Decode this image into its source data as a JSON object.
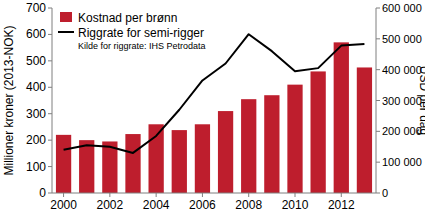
{
  "chart_data": {
    "type": "bar",
    "categories": [
      "2000",
      null,
      "2002",
      null,
      "2004",
      null,
      "2006",
      null,
      "2008",
      null,
      "2010",
      null,
      "2012",
      null
    ],
    "series": [
      {
        "name": "Kostnad per brønn",
        "type": "bar",
        "color": "#be1e2d",
        "values": [
          220,
          200,
          195,
          223,
          260,
          238,
          260,
          310,
          355,
          370,
          410,
          460,
          570,
          475
        ]
      },
      {
        "name": "Riggrate for semi-rigger",
        "type": "line",
        "axis": "y2",
        "color": "#000000",
        "values": [
          140000,
          155000,
          150000,
          130000,
          185000,
          270000,
          365000,
          420000,
          515000,
          460000,
          395000,
          405000,
          478000,
          483000
        ]
      }
    ],
    "ylabel": "Millioner kroner (2013-NOK)",
    "y2label": "USD per dag",
    "annotations": [
      "Kilde for riggrate: IHS Petrodata"
    ],
    "ylim": [
      0,
      700
    ],
    "yticks": [
      0,
      100,
      200,
      300,
      400,
      500,
      600,
      700
    ],
    "y2lim": [
      0,
      600000
    ],
    "y2ticks": [
      0,
      {
        "value": 100000,
        "label": "100 000"
      },
      {
        "value": 200000,
        "label": "200 000"
      },
      {
        "value": 300000,
        "label": "300 000"
      },
      {
        "value": 400000,
        "label": "400 000"
      },
      {
        "value": 500000,
        "label": "500 000"
      },
      {
        "value": 600000,
        "label": "600 000"
      }
    ],
    "legend": "upper left",
    "grid": false
  }
}
